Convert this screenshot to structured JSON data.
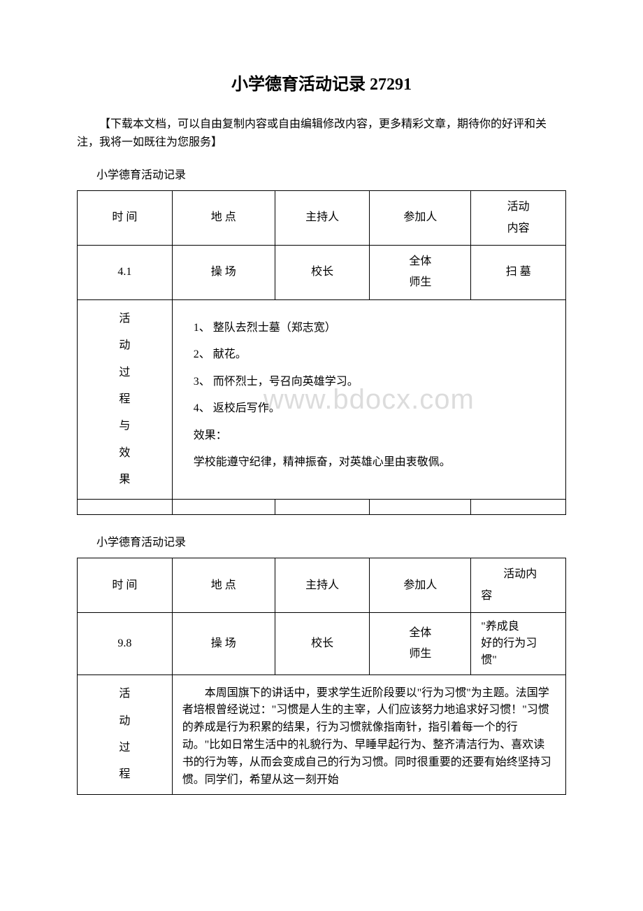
{
  "page_title": "小学德育活动记录 27291",
  "intro_text": "【下载本文档，可以自由复制内容或自由编辑修改内容，更多精彩文章，期待你的好评和关注，我将一如既往为您服务】",
  "section_label": "小学德育活动记录",
  "table_headers": {
    "time": "时  间",
    "place": "地  点",
    "host": "主持人",
    "participants": "参加人",
    "content": "活动内容",
    "content_alt": "活动内容"
  },
  "table1": {
    "time": "4.1",
    "place": "操  场",
    "host": "校长",
    "participants_line1": "全体",
    "participants_line2": "师生",
    "content": "扫 墓",
    "process_label_chars": [
      "活",
      "动",
      "过",
      "程",
      "与",
      "效",
      "果"
    ],
    "process_lines": [
      "1、  整队去烈士墓（郑志宽）",
      "2、  献花。",
      "3、  而怀烈士，号召向英雄学习。",
      "4、  返校后写作。",
      "效果：",
      "学校能遵守纪律，精神振奋，对英雄心里由衷敬佩。"
    ]
  },
  "table2": {
    "time": "9.8",
    "place": "操   场",
    "host": "校长",
    "participants_line1": "全体",
    "participants_line2": "师生",
    "content_line1": "\"养成良",
    "content_line2": "好的行为习",
    "content_line3": "惯\"",
    "process_label_chars": [
      "活",
      "动",
      "过",
      "程"
    ],
    "process_text": "本周国旗下的讲话中，要求学生近阶段要以\"行为习惯\"为主题。法国学者培根曾经说过：\"习惯是人生的主宰，人们应该努力地追求好习惯！\"习惯的养成是行为积累的结果，行为习惯就像指南针，指引着每一个的行动。\"比如日常生活中的礼貌行为、早睡早起行为、整齐清洁行为、喜欢读书的行为等，从而会变成自己的行为习惯。同时很重要的还要有始终坚持习惯。同学们，希望从这一刻开始"
  },
  "watermark": "www.bdocx.com",
  "colors": {
    "text": "#000000",
    "background": "#ffffff",
    "border": "#000000",
    "watermark": "#dcdcdc"
  }
}
